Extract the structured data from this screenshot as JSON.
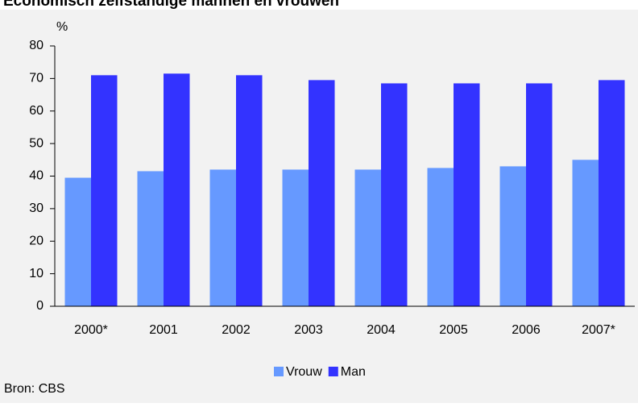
{
  "chart_data": {
    "type": "bar",
    "title": "Economisch zelfstandige mannen en vrouwen",
    "y_label": "%",
    "categories": [
      "2000*",
      "2001",
      "2002",
      "2003",
      "2004",
      "2005",
      "2006",
      "2007*"
    ],
    "series": [
      {
        "name": "Vrouw",
        "color": "#6699ff",
        "values": [
          39.5,
          41.5,
          42,
          42,
          42,
          42.5,
          43,
          45
        ]
      },
      {
        "name": "Man",
        "color": "#3333ff",
        "values": [
          71,
          71.5,
          71,
          69.5,
          68.5,
          68.5,
          68.5,
          69.5
        ]
      }
    ],
    "ylim": [
      0,
      80
    ],
    "yticks": [
      0,
      10,
      20,
      30,
      40,
      50,
      60,
      70,
      80
    ],
    "grid": false,
    "legend": "bottom",
    "source": "Bron: CBS"
  }
}
